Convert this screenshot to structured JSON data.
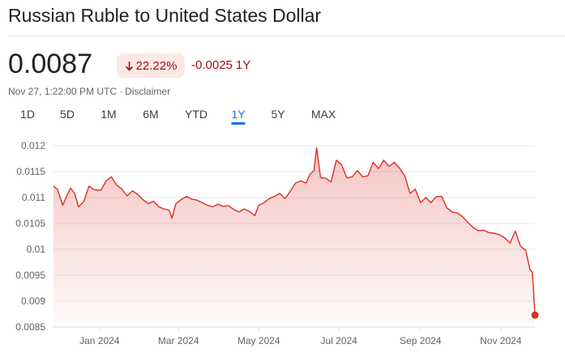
{
  "title": "Russian Ruble to United States Dollar",
  "price": "0.0087",
  "change_percent": "22.22%",
  "change_direction": "down",
  "change_abs": "-0.0025",
  "change_period": "1Y",
  "timestamp": "Nov 27, 1:22:00 PM UTC",
  "separator": "·",
  "disclaimer": "Disclaimer",
  "tabs": [
    {
      "label": "1D",
      "active": false
    },
    {
      "label": "5D",
      "active": false
    },
    {
      "label": "1M",
      "active": false
    },
    {
      "label": "6M",
      "active": false
    },
    {
      "label": "YTD",
      "active": false
    },
    {
      "label": "1Y",
      "active": true
    },
    {
      "label": "5Y",
      "active": false
    },
    {
      "label": "MAX",
      "active": false
    }
  ],
  "colors": {
    "negative": "#a50e0e",
    "line": "#d93025",
    "accent": "#1a73e8",
    "badge_bg": "#fce8e6"
  },
  "chart_data": {
    "type": "area",
    "title": "",
    "xlabel": "",
    "ylabel": "",
    "ylim": [
      0.0085,
      0.012
    ],
    "yticks": [
      0.012,
      0.0115,
      0.011,
      0.0105,
      0.01,
      0.0095,
      0.009,
      0.0085
    ],
    "ytick_labels": [
      "0.012",
      "0.0115",
      "0.011",
      "0.0105",
      "0.01",
      "0.0095",
      "0.009",
      "0.0085"
    ],
    "xlim": [
      "2023-11-27",
      "2024-11-27"
    ],
    "xticks": [
      "2024-01-01",
      "2024-03-01",
      "2024-05-01",
      "2024-07-01",
      "2024-09-01",
      "2024-11-01"
    ],
    "xtick_labels": [
      "Jan 2024",
      "Mar 2024",
      "May 2024",
      "Jul 2024",
      "Sep 2024",
      "Nov 2024"
    ],
    "grid": true,
    "series": [
      {
        "x": [
          "2023-11-27",
          "2023-11-30",
          "2023-12-04",
          "2023-12-07",
          "2023-12-10",
          "2023-12-13",
          "2023-12-16",
          "2023-12-20",
          "2023-12-24",
          "2023-12-28",
          "2024-01-02",
          "2024-01-06",
          "2024-01-10",
          "2024-01-14",
          "2024-01-18",
          "2024-01-22",
          "2024-01-26",
          "2024-01-30",
          "2024-02-03",
          "2024-02-07",
          "2024-02-11",
          "2024-02-15",
          "2024-02-19",
          "2024-02-23",
          "2024-02-25",
          "2024-02-28",
          "2024-03-03",
          "2024-03-07",
          "2024-03-11",
          "2024-03-15",
          "2024-03-19",
          "2024-03-23",
          "2024-03-27",
          "2024-03-31",
          "2024-04-04",
          "2024-04-08",
          "2024-04-12",
          "2024-04-16",
          "2024-04-20",
          "2024-04-24",
          "2024-04-28",
          "2024-05-01",
          "2024-05-05",
          "2024-05-09",
          "2024-05-13",
          "2024-05-17",
          "2024-05-21",
          "2024-05-25",
          "2024-05-29",
          "2024-06-02",
          "2024-06-06",
          "2024-06-09",
          "2024-06-12",
          "2024-06-14",
          "2024-06-17",
          "2024-06-21",
          "2024-06-25",
          "2024-06-29",
          "2024-07-03",
          "2024-07-07",
          "2024-07-11",
          "2024-07-15",
          "2024-07-19",
          "2024-07-23",
          "2024-07-27",
          "2024-07-31",
          "2024-08-04",
          "2024-08-08",
          "2024-08-12",
          "2024-08-16",
          "2024-08-20",
          "2024-08-24",
          "2024-08-28",
          "2024-09-01",
          "2024-09-05",
          "2024-09-09",
          "2024-09-13",
          "2024-09-17",
          "2024-09-21",
          "2024-09-25",
          "2024-09-29",
          "2024-10-03",
          "2024-10-07",
          "2024-10-11",
          "2024-10-15",
          "2024-10-19",
          "2024-10-23",
          "2024-10-27",
          "2024-10-31",
          "2024-11-04",
          "2024-11-08",
          "2024-11-12",
          "2024-11-16",
          "2024-11-20",
          "2024-11-23",
          "2024-11-25",
          "2024-11-27"
        ],
        "y": [
          0.01122,
          0.01116,
          0.01085,
          0.01103,
          0.01118,
          0.01108,
          0.01082,
          0.01092,
          0.01122,
          0.01115,
          0.01114,
          0.01132,
          0.0114,
          0.01124,
          0.01116,
          0.01103,
          0.01113,
          0.01106,
          0.01096,
          0.01088,
          0.01093,
          0.01082,
          0.01078,
          0.01075,
          0.0106,
          0.01088,
          0.01096,
          0.01102,
          0.01097,
          0.01095,
          0.0109,
          0.01085,
          0.01082,
          0.01087,
          0.01083,
          0.01084,
          0.01077,
          0.01072,
          0.01078,
          0.01073,
          0.01065,
          0.01085,
          0.0109,
          0.01098,
          0.01102,
          0.01108,
          0.01098,
          0.01112,
          0.01128,
          0.01132,
          0.01128,
          0.01145,
          0.01152,
          0.01196,
          0.01138,
          0.01137,
          0.0113,
          0.01172,
          0.01163,
          0.01138,
          0.0114,
          0.01152,
          0.0114,
          0.01142,
          0.01168,
          0.01156,
          0.01172,
          0.0116,
          0.01168,
          0.01157,
          0.01142,
          0.01108,
          0.01116,
          0.0109,
          0.011,
          0.0109,
          0.01102,
          0.01102,
          0.0108,
          0.01072,
          0.0107,
          0.01063,
          0.01052,
          0.01042,
          0.01036,
          0.01037,
          0.01032,
          0.01031,
          0.01028,
          0.01022,
          0.01012,
          0.01035,
          0.01006,
          0.00998,
          0.00962,
          0.00955,
          0.00873
        ]
      }
    ]
  }
}
